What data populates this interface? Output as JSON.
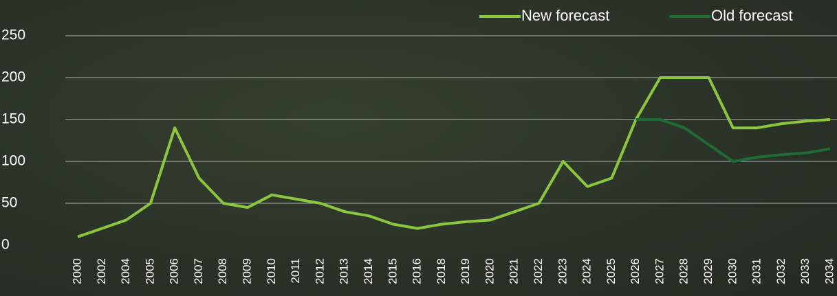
{
  "chart_data": {
    "type": "line",
    "categories": [
      "2000",
      "2002",
      "2004",
      "2005",
      "2006",
      "2007",
      "2008",
      "2009",
      "2010",
      "2011",
      "2012",
      "2013",
      "2014",
      "2015",
      "2016",
      "2018",
      "2019",
      "2020",
      "2021",
      "2022",
      "2023",
      "2024",
      "2025",
      "2026",
      "2027",
      "2028",
      "2029",
      "2030",
      "2031",
      "2032",
      "2033",
      "2034"
    ],
    "series": [
      {
        "name": "New forecast",
        "color": "#8cc63f",
        "values": [
          10,
          20,
          30,
          50,
          140,
          80,
          50,
          45,
          60,
          55,
          50,
          40,
          35,
          25,
          20,
          25,
          28,
          30,
          40,
          50,
          100,
          70,
          80,
          150,
          200,
          200,
          200,
          140,
          140,
          145,
          148,
          150
        ]
      },
      {
        "name": "Old forecast",
        "color": "#1f6b34",
        "values": [
          null,
          null,
          null,
          null,
          null,
          null,
          null,
          null,
          null,
          null,
          null,
          null,
          null,
          null,
          null,
          null,
          null,
          null,
          null,
          null,
          null,
          null,
          null,
          150,
          150,
          140,
          120,
          100,
          105,
          108,
          110,
          115
        ]
      }
    ],
    "ylim": [
      0,
      250
    ],
    "yticks": [
      0,
      50,
      100,
      150,
      200,
      250
    ],
    "grid": true,
    "legend": "top-right"
  }
}
